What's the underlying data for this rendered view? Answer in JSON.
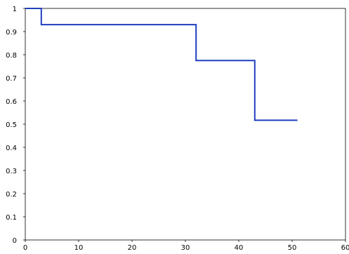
{
  "chart_data": {
    "type": "line",
    "title": "",
    "xlabel": "",
    "ylabel": "",
    "xlim": [
      0,
      60
    ],
    "ylim": [
      0,
      1
    ],
    "xticks": [
      "0",
      "10",
      "20",
      "30",
      "40",
      "50",
      "60"
    ],
    "yticks": [
      "0",
      "0.1",
      "0.2",
      "0.3",
      "0.4",
      "0.5",
      "0.6",
      "0.7",
      "0.8",
      "0.9",
      "1"
    ],
    "step": "post",
    "grid": false,
    "legend": "none",
    "series": [
      {
        "color": "#1f3fbf",
        "x": [
          0,
          3,
          32,
          43,
          51
        ],
        "y": [
          1,
          0.93,
          0.775,
          0.517,
          0.517
        ]
      }
    ]
  }
}
